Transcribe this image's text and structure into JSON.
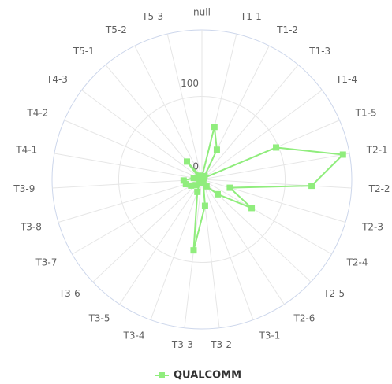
{
  "chart_data": {
    "type": "radar",
    "categories": [
      "null",
      "T1-1",
      "T1-2",
      "T1-3",
      "T1-4",
      "T1-5",
      "T2-1",
      "T2-2",
      "T2-3",
      "T2-4",
      "T2-5",
      "T2-6",
      "T3-1",
      "T3-2",
      "T3-3",
      "T3-4",
      "T3-5",
      "T3-6",
      "T3-7",
      "T3-8",
      "T3-9",
      "T4-1",
      "T4-2",
      "T4-3",
      "T5-1",
      "T5-2",
      "T5-3"
    ],
    "series": [
      {
        "name": "QUALCOMM",
        "color": "#90ed7d",
        "values": [
          3,
          65,
          40,
          5,
          3,
          97,
          172,
          132,
          35,
          69,
          26,
          10,
          5,
          32,
          86,
          16,
          5,
          10,
          15,
          20,
          22,
          10,
          5,
          5,
          28,
          5,
          3
        ]
      }
    ],
    "ylim": [
      0,
      180
    ],
    "yticks": [
      0,
      100
    ],
    "grid": true,
    "legend": "bottom"
  }
}
